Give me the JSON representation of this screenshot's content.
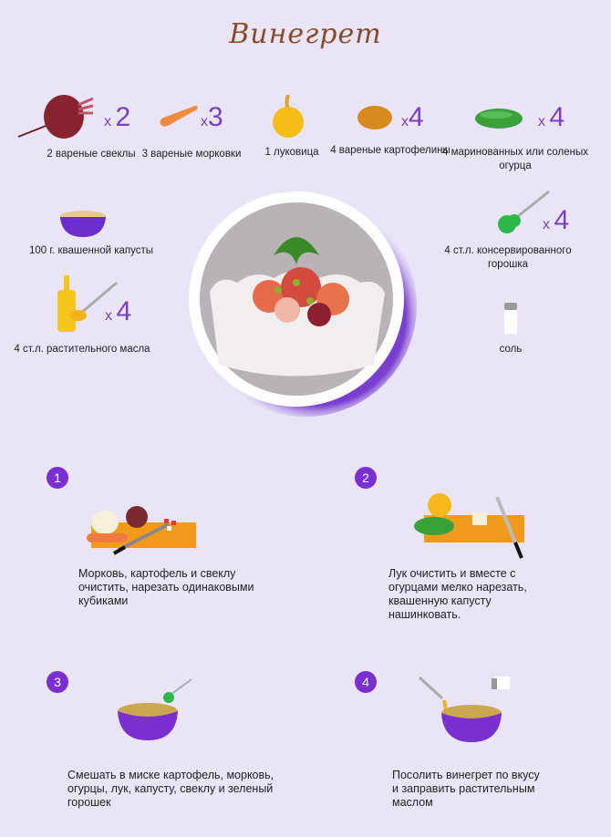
{
  "title": "Винегрет",
  "colors": {
    "background": "#e9e5f7",
    "accent": "#7a2fd0",
    "title": "#8a4a2a"
  },
  "ingredients": [
    {
      "icon": "beet-icon",
      "qty_prefix": "x",
      "qty": "2",
      "label": "2 вареные свеклы"
    },
    {
      "icon": "carrot-icon",
      "qty_prefix": "x",
      "qty": "3",
      "label": "3 вареные морковки"
    },
    {
      "icon": "onion-icon",
      "label": "1 луковица"
    },
    {
      "icon": "potato-icon",
      "qty_prefix": "x",
      "qty": "4",
      "label": "4 вареные картофелины"
    },
    {
      "icon": "cucumber-icon",
      "qty_prefix": "x",
      "qty": "4",
      "label": "4 маринованных или соленых огурца"
    },
    {
      "icon": "sauerkraut-bowl-icon",
      "label": "100 г. квашенной капусты"
    },
    {
      "icon": "peas-spoon-icon",
      "qty_prefix": "x",
      "qty": "4",
      "label": "4 ст.л. консервированного горошка"
    },
    {
      "icon": "oil-bottle-icon",
      "qty_prefix": "x",
      "qty": "4",
      "label": "4 ст.л. растительного масла"
    },
    {
      "icon": "salt-shaker-icon",
      "label": "соль"
    }
  ],
  "steps": [
    {
      "number": "1",
      "text": "Морковь, картофель и свеклу очистить, нарезать одинаковыми кубиками"
    },
    {
      "number": "2",
      "text": "Лук очистить и вместе с огурцами мелко нарезать, квашенную капусту нашинковать."
    },
    {
      "number": "3",
      "text": "Смешать в миске картофель, морковь, огурцы, лук, капусту, свеклу и зеленый горошек"
    },
    {
      "number": "4",
      "text": "Посолить винегрет по вкусу и заправить растительным маслом"
    }
  ]
}
